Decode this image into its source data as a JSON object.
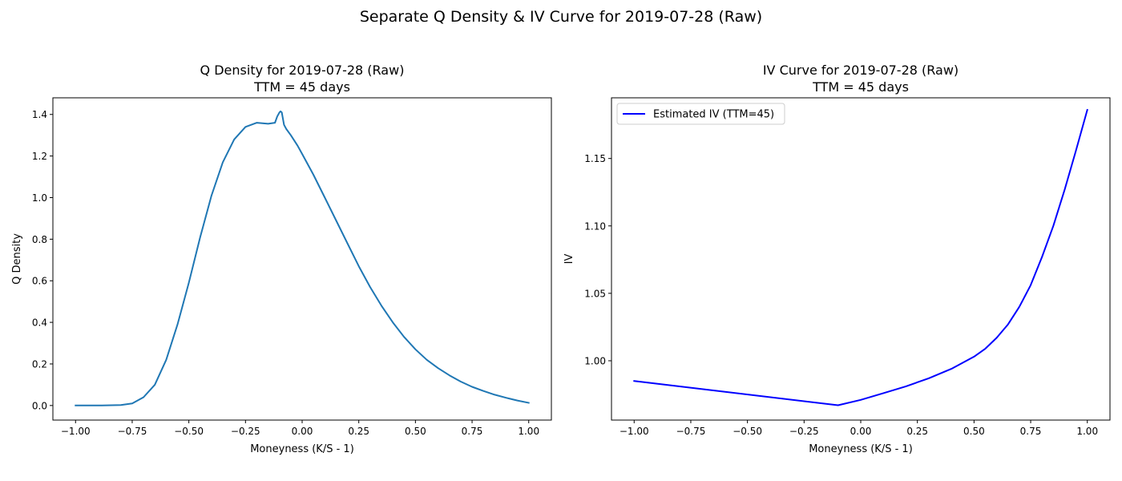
{
  "suptitle": "Separate Q Density & IV Curve for 2019-07-28 (Raw)",
  "chart_data": [
    {
      "type": "line",
      "title": "Q Density for 2019-07-28 (Raw)",
      "subtitle": "TTM = 45 days",
      "xlabel": "Moneyness (K/S - 1)",
      "ylabel": "Q Density",
      "xlim": [
        -1.1,
        1.1
      ],
      "ylim": [
        -0.07,
        1.48
      ],
      "xticks": [
        -1.0,
        -0.75,
        -0.5,
        -0.25,
        0.0,
        0.25,
        0.5,
        0.75,
        1.0
      ],
      "xtick_labels": [
        "−1.00",
        "−0.75",
        "−0.50",
        "−0.25",
        "0.00",
        "0.25",
        "0.50",
        "0.75",
        "1.00"
      ],
      "yticks": [
        0.0,
        0.2,
        0.4,
        0.6,
        0.8,
        1.0,
        1.2,
        1.4
      ],
      "ytick_labels": [
        "0.0",
        "0.2",
        "0.4",
        "0.6",
        "0.8",
        "1.0",
        "1.2",
        "1.4"
      ],
      "grid": false,
      "legend": null,
      "series": [
        {
          "color": "#1f77b4",
          "x": [
            -1.0,
            -0.9,
            -0.8,
            -0.75,
            -0.7,
            -0.65,
            -0.6,
            -0.55,
            -0.5,
            -0.45,
            -0.4,
            -0.35,
            -0.3,
            -0.25,
            -0.2,
            -0.15,
            -0.12,
            -0.11,
            -0.1,
            -0.095,
            -0.09,
            -0.085,
            -0.08,
            -0.07,
            -0.05,
            -0.02,
            0.0,
            0.05,
            0.1,
            0.15,
            0.2,
            0.25,
            0.3,
            0.35,
            0.4,
            0.45,
            0.5,
            0.55,
            0.6,
            0.65,
            0.7,
            0.75,
            0.8,
            0.85,
            0.9,
            0.95,
            1.0
          ],
          "y": [
            0.0,
            0.0,
            0.002,
            0.01,
            0.04,
            0.1,
            0.22,
            0.39,
            0.59,
            0.81,
            1.01,
            1.17,
            1.28,
            1.34,
            1.36,
            1.355,
            1.36,
            1.39,
            1.41,
            1.415,
            1.41,
            1.38,
            1.35,
            1.33,
            1.3,
            1.25,
            1.21,
            1.11,
            1.0,
            0.89,
            0.78,
            0.67,
            0.57,
            0.48,
            0.4,
            0.33,
            0.27,
            0.22,
            0.18,
            0.145,
            0.115,
            0.09,
            0.07,
            0.052,
            0.037,
            0.024,
            0.013
          ]
        }
      ]
    },
    {
      "type": "line",
      "title": "IV Curve for 2019-07-28 (Raw)",
      "subtitle": "TTM = 45 days",
      "xlabel": "Moneyness (K/S - 1)",
      "ylabel": "IV",
      "xlim": [
        -1.1,
        1.1
      ],
      "ylim": [
        0.956,
        1.195
      ],
      "xticks": [
        -1.0,
        -0.75,
        -0.5,
        -0.25,
        0.0,
        0.25,
        0.5,
        0.75,
        1.0
      ],
      "xtick_labels": [
        "−1.00",
        "−0.75",
        "−0.50",
        "−0.25",
        "0.00",
        "0.25",
        "0.50",
        "0.75",
        "1.00"
      ],
      "yticks": [
        1.0,
        1.05,
        1.1,
        1.15
      ],
      "ytick_labels": [
        "1.00",
        "1.05",
        "1.10",
        "1.15"
      ],
      "grid": false,
      "legend": "top-left",
      "series": [
        {
          "name": "Estimated IV (TTM=45)",
          "color": "#0000ff",
          "x": [
            -1.0,
            -0.1,
            0.0,
            0.1,
            0.2,
            0.3,
            0.4,
            0.5,
            0.55,
            0.6,
            0.65,
            0.7,
            0.75,
            0.8,
            0.85,
            0.9,
            0.95,
            1.0
          ],
          "y": [
            0.985,
            0.967,
            0.971,
            0.976,
            0.981,
            0.987,
            0.994,
            1.003,
            1.009,
            1.017,
            1.027,
            1.04,
            1.056,
            1.077,
            1.1,
            1.127,
            1.156,
            1.186
          ]
        }
      ]
    }
  ]
}
